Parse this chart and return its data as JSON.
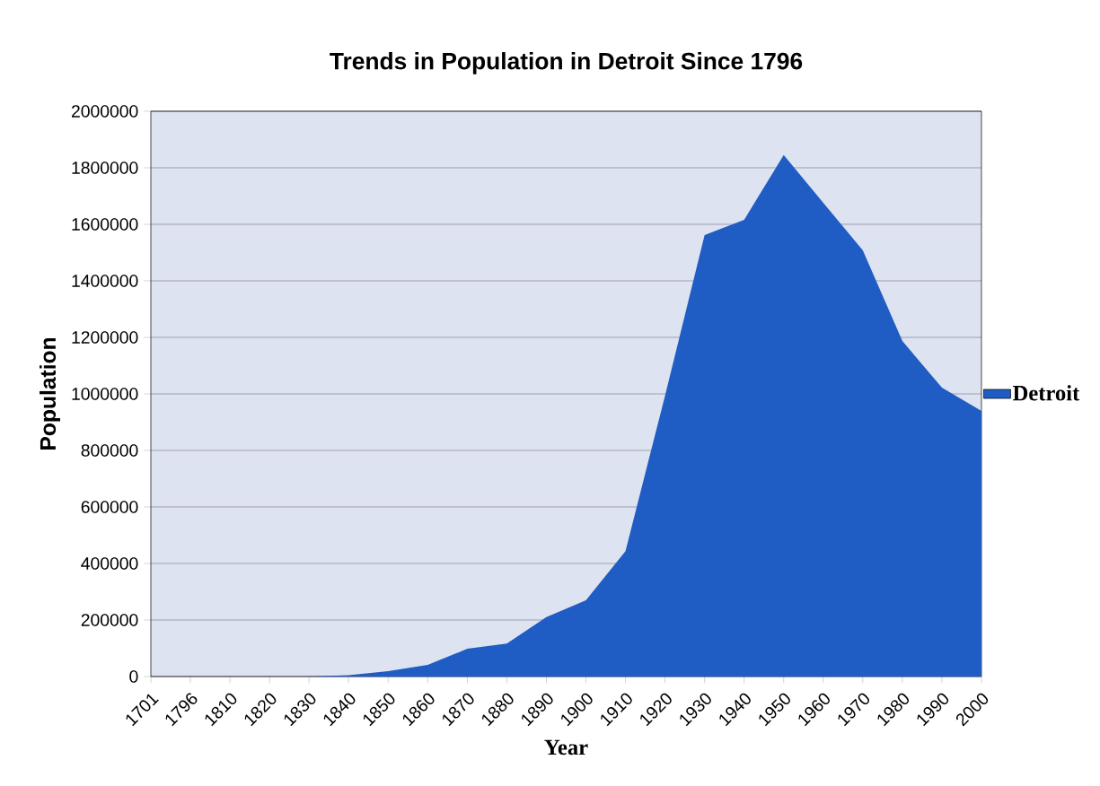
{
  "chart_data": {
    "type": "area",
    "title": "Trends in Population in Detroit Since 1796",
    "xlabel": "Year",
    "ylabel": "Population",
    "categories": [
      "1701",
      "1796",
      "1810",
      "1820",
      "1830",
      "1840",
      "1850",
      "1860",
      "1870",
      "1880",
      "1890",
      "1900",
      "1910",
      "1920",
      "1930",
      "1940",
      "1950",
      "1960",
      "1970",
      "1980",
      "1990",
      "2000"
    ],
    "series": [
      {
        "name": "Detroit",
        "color": "#1f5cc4",
        "values": [
          0,
          0,
          0,
          0,
          0,
          5000,
          19000,
          41000,
          98000,
          117000,
          210000,
          270000,
          444000,
          994000,
          1562000,
          1616000,
          1845000,
          1676000,
          1508000,
          1187000,
          1022000,
          940000
        ]
      }
    ],
    "ylim": [
      0,
      2000000
    ],
    "yticks": [
      0,
      200000,
      400000,
      600000,
      800000,
      1000000,
      1200000,
      1400000,
      1600000,
      1800000,
      2000000
    ],
    "grid": "y",
    "legend": "right"
  }
}
